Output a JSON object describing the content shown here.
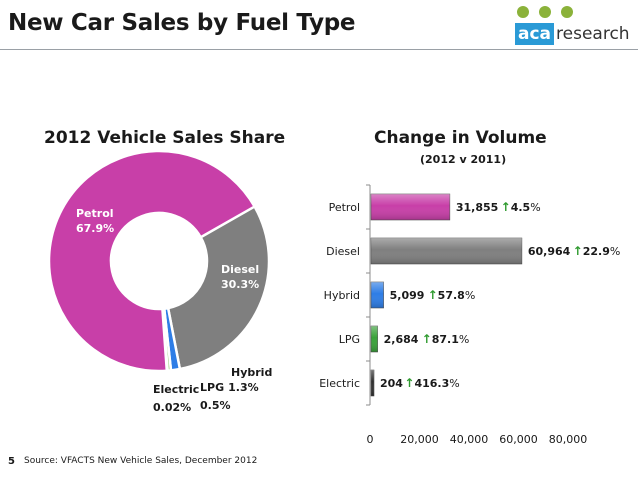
{
  "page": {
    "title": "New Car Sales by Fuel Type",
    "logo": {
      "brand": "aca research",
      "brand_part1": "aca",
      "brand_part2": "research",
      "dot_color": "#8bb23a",
      "brand_color": "#2a9ad6"
    },
    "footer": {
      "page_number": "5",
      "source": "Source: VFACTS New Vehicle Sales, December 2012"
    }
  },
  "chart_data": [
    {
      "type": "pie",
      "title": "2012 Vehicle Sales Share",
      "donut": true,
      "slices": [
        {
          "name": "Petrol",
          "value": 67.9,
          "label": "67.9%",
          "color": "#c83fa8"
        },
        {
          "name": "Diesel",
          "value": 30.3,
          "label": "30.3%",
          "color": "#7f7f7f"
        },
        {
          "name": "Hybrid",
          "value": 1.3,
          "label": "1.3%",
          "color": "#2e7de6"
        },
        {
          "name": "LPG",
          "value": 0.5,
          "label": "0.5%",
          "color": "#a8d08d"
        },
        {
          "name": "Electric",
          "value": 0.02,
          "label": "0.02%",
          "color": "#4a4a4a"
        }
      ]
    },
    {
      "type": "bar",
      "orientation": "horizontal",
      "title": "Change in Volume",
      "subtitle": "(2012 v 2011)",
      "categories": [
        "Petrol",
        "Diesel",
        "Hybrid",
        "LPG",
        "Electric"
      ],
      "values": [
        31855,
        60964,
        5099,
        2684,
        204
      ],
      "value_labels": [
        "31,855",
        "60,964",
        "5,099",
        "2,684",
        "204"
      ],
      "changes": [
        {
          "arrow": "↑",
          "value": "4.5",
          "unit": "%"
        },
        {
          "arrow": "↑",
          "value": "22.9",
          "unit": "%"
        },
        {
          "arrow": "↑",
          "value": "57.8",
          "unit": "%"
        },
        {
          "arrow": "↑",
          "value": "87.1",
          "unit": "%"
        },
        {
          "arrow": "↑",
          "value": "416.3",
          "unit": "%"
        }
      ],
      "colors": [
        "#c83fa8",
        "#7f7f7f",
        "#2e7de6",
        "#3aa23a",
        "#2f2f2f"
      ],
      "arrow_color": "#2e9a2e",
      "xlim": [
        0,
        80000
      ],
      "xticks": [
        0,
        20000,
        40000,
        60000,
        80000
      ],
      "xtick_labels": [
        "0",
        "20,000",
        "40,000",
        "60,000",
        "80,000"
      ],
      "grid": false
    }
  ]
}
